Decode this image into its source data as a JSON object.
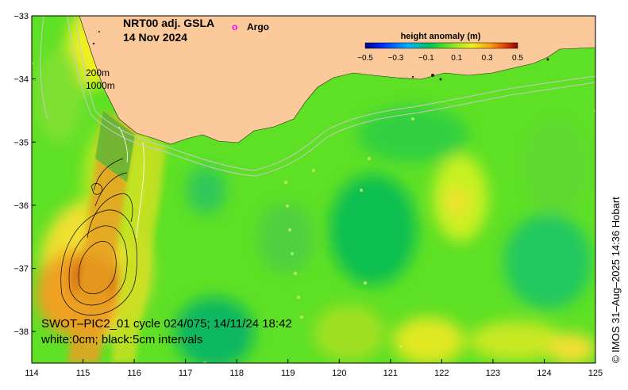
{
  "title": {
    "line1": "NRT00 adj. GSLA",
    "line2": "14 Nov 2024"
  },
  "legend": {
    "argo_marker": "o",
    "argo_label": "Argo",
    "argo_color": "#ff00ff"
  },
  "depth_contours": {
    "label_a": "200m",
    "label_b": "1000m"
  },
  "colorbar": {
    "title": "height anomaly (m)",
    "ticks": [
      "−0.5",
      "−0.3",
      "−0.1",
      "0.1",
      "0.3",
      "0.5"
    ],
    "range": [
      -0.5,
      0.5
    ]
  },
  "swot": {
    "line1": "SWOT–PIC2_01 cycle 024/075; 14/11/24 18:42",
    "line2": "white:0cm; black:5cm intervals"
  },
  "credit": "© IMOS 31–Aug–2025 14:36 Hobart",
  "axes": {
    "x_ticks": [
      "114",
      "115",
      "116",
      "117",
      "118",
      "119",
      "120",
      "121",
      "122",
      "123",
      "124",
      "125"
    ],
    "y_ticks": [
      "−33",
      "−34",
      "−35",
      "−36",
      "−37",
      "−38"
    ],
    "lon_range": [
      114,
      125
    ],
    "lat_range": [
      -38.5,
      -33
    ]
  },
  "colors": {
    "land": "#fbc99a",
    "ocean_base": "#5ee025"
  }
}
